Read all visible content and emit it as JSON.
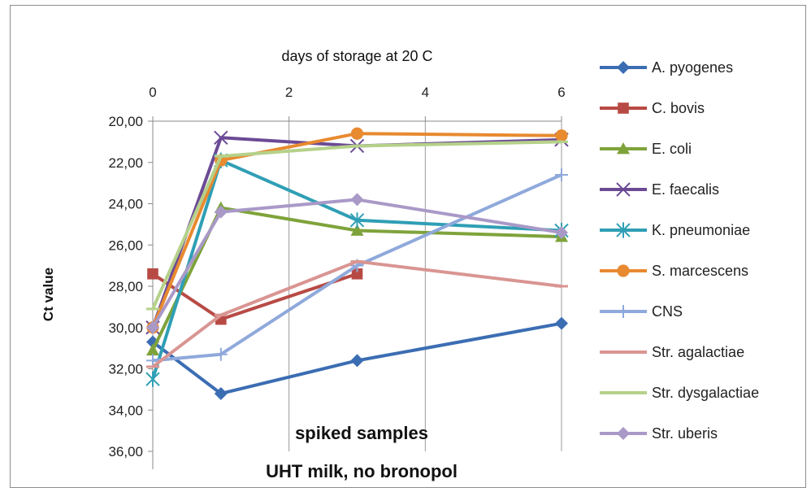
{
  "chart_data": {
    "type": "line",
    "x_axis_title": "days of storage at 20 C",
    "y_axis_title": "Ct value",
    "x_ticks": [
      "0",
      "2",
      "4",
      "6"
    ],
    "y_ticks": [
      "20,00",
      "22,00",
      "24,00",
      "26,00",
      "28,00",
      "30,00",
      "32,00",
      "34,00",
      "36,00"
    ],
    "x_range": [
      0,
      6
    ],
    "y_range": [
      20,
      36
    ],
    "y_reversed": true,
    "x_axis_position": "top",
    "grid": "vertical",
    "legend_position": "right",
    "annotations": [
      "spiked samples",
      "UHT milk, no bronopol"
    ],
    "series": [
      {
        "name": "A. pyogenes",
        "color": "#3b6db3",
        "marker": "diamond",
        "points": [
          [
            0,
            30.7
          ],
          [
            1,
            33.2
          ],
          [
            3,
            31.6
          ],
          [
            6,
            29.8
          ]
        ]
      },
      {
        "name": "C. bovis",
        "color": "#b84a45",
        "marker": "square",
        "points": [
          [
            0,
            27.4
          ],
          [
            1,
            29.6
          ],
          [
            3,
            27.4
          ]
        ]
      },
      {
        "name": "E. coli",
        "color": "#7fa33b",
        "marker": "triangle",
        "points": [
          [
            0,
            31.1
          ],
          [
            1,
            24.2
          ],
          [
            3,
            25.3
          ],
          [
            6,
            25.6
          ]
        ]
      },
      {
        "name": "E. faecalis",
        "color": "#6b4a95",
        "marker": "x",
        "points": [
          [
            0,
            30.0
          ],
          [
            1,
            20.8
          ],
          [
            3,
            21.2
          ],
          [
            6,
            20.9
          ]
        ]
      },
      {
        "name": "K. pneumoniae",
        "color": "#2f9fb5",
        "marker": "star",
        "points": [
          [
            0,
            32.5
          ],
          [
            1,
            21.9
          ],
          [
            3,
            24.8
          ],
          [
            6,
            25.3
          ]
        ]
      },
      {
        "name": "S. marcescens",
        "color": "#e88a30",
        "marker": "circle",
        "points": [
          [
            0,
            30.0
          ],
          [
            1,
            21.9
          ],
          [
            3,
            20.6
          ],
          [
            6,
            20.7
          ]
        ]
      },
      {
        "name": "CNS",
        "color": "#8fa9db",
        "marker": "plus",
        "points": [
          [
            0,
            31.6
          ],
          [
            1,
            31.3
          ],
          [
            3,
            27.0
          ],
          [
            6,
            22.6
          ]
        ]
      },
      {
        "name": "Str. agalactiae",
        "color": "#d99592",
        "marker": "dash",
        "points": [
          [
            0,
            31.9
          ],
          [
            1,
            29.4
          ],
          [
            3,
            26.8
          ],
          [
            6,
            28.0
          ]
        ]
      },
      {
        "name": "Str. dysgalactiae",
        "color": "#b5d18a",
        "marker": "dash",
        "points": [
          [
            0,
            29.1
          ],
          [
            1,
            21.7
          ],
          [
            3,
            21.2
          ],
          [
            6,
            21.0
          ]
        ]
      },
      {
        "name": "Str. uberis",
        "color": "#a999c7",
        "marker": "diamond",
        "points": [
          [
            0,
            30.0
          ],
          [
            1,
            24.4
          ],
          [
            3,
            23.8
          ],
          [
            6,
            25.4
          ]
        ]
      }
    ]
  }
}
